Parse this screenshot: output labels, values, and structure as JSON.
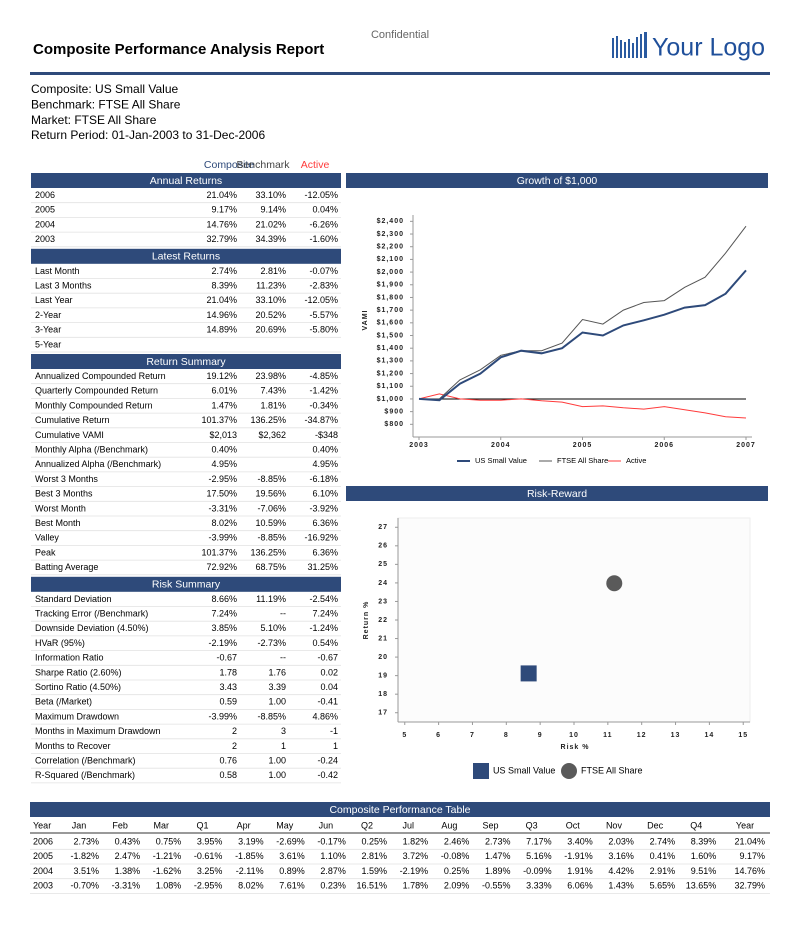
{
  "header": {
    "confidential": "Confidential",
    "title": "Composite Performance Analysis Report",
    "logo": "Your Logo"
  },
  "info": [
    "Composite: US Small Value",
    "Benchmark: FTSE All Share",
    "Market: FTSE All Share",
    "Return Period: 01-Jan-2003 to 31-Dec-2006"
  ],
  "legend": [
    {
      "name": "Composite",
      "color": "#2e4a7a"
    },
    {
      "name": "Benchmark",
      "color": "#444444"
    },
    {
      "name": "Active",
      "color": "#ff3b3b"
    }
  ],
  "sections": [
    {
      "title": "Annual Returns",
      "rows": [
        [
          "2006",
          "21.04%",
          "33.10%",
          "-12.05%"
        ],
        [
          "2005",
          "9.17%",
          "9.14%",
          "0.04%"
        ],
        [
          "2004",
          "14.76%",
          "21.02%",
          "-6.26%"
        ],
        [
          "2003",
          "32.79%",
          "34.39%",
          "-1.60%"
        ]
      ]
    },
    {
      "title": "Latest Returns",
      "rows": [
        [
          "Last Month",
          "2.74%",
          "2.81%",
          "-0.07%"
        ],
        [
          "Last 3 Months",
          "8.39%",
          "11.23%",
          "-2.83%"
        ],
        [
          "Last Year",
          "21.04%",
          "33.10%",
          "-12.05%"
        ],
        [
          "2-Year",
          "14.96%",
          "20.52%",
          "-5.57%"
        ],
        [
          "3-Year",
          "14.89%",
          "20.69%",
          "-5.80%"
        ],
        [
          "5-Year"
        ]
      ]
    },
    {
      "title": "Return Summary",
      "rows": [
        [
          "Annualized Compounded Return",
          "19.12%",
          "23.98%",
          "-4.85%"
        ],
        [
          "Quarterly Compounded Return",
          "6.01%",
          "7.43%",
          "-1.42%"
        ],
        [
          "Monthly Compounded Return",
          "1.47%",
          "1.81%",
          "-0.34%"
        ],
        [
          "Cumulative Return",
          "101.37%",
          "136.25%",
          "-34.87%"
        ],
        [
          "Cumulative VAMI",
          "$2,013",
          "$2,362",
          "-$348"
        ],
        [
          "Monthly Alpha (/Benchmark)",
          "0.40%",
          null,
          "0.40%"
        ],
        [
          "Annualized Alpha (/Benchmark)",
          "4.95%",
          null,
          "4.95%"
        ],
        [
          "Worst 3 Months",
          "-2.95%",
          "-8.85%",
          "-6.18%"
        ],
        [
          "Best 3 Months",
          "17.50%",
          "19.56%",
          "6.10%"
        ],
        [
          "Worst Month",
          "-3.31%",
          "-7.06%",
          "-3.92%"
        ],
        [
          "Best Month",
          "8.02%",
          "10.59%",
          "6.36%"
        ],
        [
          "Valley",
          "-3.99%",
          "-8.85%",
          "-16.92%"
        ],
        [
          "Peak",
          "101.37%",
          "136.25%",
          "6.36%"
        ],
        [
          "Batting Average",
          "72.92%",
          "68.75%",
          "31.25%"
        ]
      ]
    },
    {
      "title": "Risk Summary",
      "rows": [
        [
          "Standard Deviation",
          "8.66%",
          "11.19%",
          "-2.54%"
        ],
        [
          "Tracking Error (/Benchmark)",
          "7.24%",
          "--",
          "7.24%"
        ],
        [
          "Downside Deviation (4.50%)",
          "3.85%",
          "5.10%",
          "-1.24%"
        ],
        [
          "HVaR (95%)",
          "-2.19%",
          "-2.73%",
          "0.54%"
        ],
        [
          "Information Ratio",
          "-0.67",
          "--",
          "-0.67"
        ],
        [
          "Sharpe Ratio (2.60%)",
          "1.78",
          "1.76",
          "0.02"
        ],
        [
          "Sortino Ratio (4.50%)",
          "3.43",
          "3.39",
          "0.04"
        ],
        [
          "Beta (/Market)",
          "0.59",
          "1.00",
          "-0.41"
        ],
        [
          "Maximum Drawdown",
          "-3.99%",
          "-8.85%",
          "4.86%"
        ],
        [
          "Months in Maximum Drawdown",
          "2",
          "3",
          "-1"
        ],
        [
          "Months to Recover",
          "2",
          "1",
          "1"
        ],
        [
          "Correlation (/Benchmark)",
          "0.76",
          "1.00",
          "-0.24"
        ],
        [
          "R-Squared (/Benchmark)",
          "0.58",
          "1.00",
          "-0.42"
        ]
      ]
    }
  ],
  "chart_data": [
    {
      "type": "line",
      "title": "Growth of $1,000",
      "y_label": "VAMI",
      "x": [
        2003,
        2003.25,
        2003.5,
        2003.75,
        2004,
        2004.25,
        2004.5,
        2004.75,
        2005,
        2005.25,
        2005.5,
        2005.75,
        2006,
        2006.25,
        2006.5,
        2006.75,
        2007
      ],
      "xlim": [
        2003,
        2007
      ],
      "xticks": [
        2003,
        2004,
        2005,
        2006,
        2007
      ],
      "ylim": [
        700,
        2450
      ],
      "yticks": [
        {
          "value": 800,
          "label": "$800"
        },
        {
          "value": 900,
          "label": "$900"
        },
        {
          "value": 1000,
          "label": "$1,000"
        },
        {
          "value": 1100,
          "label": "$1,100"
        },
        {
          "value": 1200,
          "label": "$1,200"
        },
        {
          "value": 1300,
          "label": "$1,300"
        },
        {
          "value": 1400,
          "label": "$1,400"
        },
        {
          "value": 1500,
          "label": "$1,500"
        },
        {
          "value": 1600,
          "label": "$1,600"
        },
        {
          "value": 1700,
          "label": "$1,700"
        },
        {
          "value": 1800,
          "label": "$1,800"
        },
        {
          "value": 1900,
          "label": "$1,900"
        },
        {
          "value": 2000,
          "label": "$2,000"
        },
        {
          "value": 2100,
          "label": "$2,100"
        },
        {
          "value": 2200,
          "label": "$2,200"
        },
        {
          "value": 2300,
          "label": "$2,300"
        },
        {
          "value": 2400,
          "label": "$2,400"
        }
      ],
      "baseline": 1000,
      "series": [
        {
          "name": "US Small Value",
          "color": "#2e4a7a",
          "width": 2,
          "values": [
            1000,
            990,
            1120,
            1200,
            1328,
            1380,
            1360,
            1400,
            1524,
            1500,
            1580,
            1620,
            1664,
            1720,
            1740,
            1830,
            2013
          ]
        },
        {
          "name": "FTSE All Share",
          "color": "#555555",
          "width": 1,
          "values": [
            1000,
            1000,
            1150,
            1230,
            1344,
            1380,
            1380,
            1440,
            1626,
            1590,
            1700,
            1760,
            1775,
            1880,
            1960,
            2150,
            2362
          ]
        },
        {
          "name": "Active",
          "color": "#ff3b3b",
          "width": 1,
          "values": [
            1000,
            1040,
            1000,
            990,
            990,
            1000,
            985,
            975,
            940,
            945,
            930,
            920,
            940,
            915,
            890,
            860,
            850
          ]
        }
      ]
    },
    {
      "type": "scatter",
      "title": "Risk-Reward",
      "x_label": "Risk %",
      "y_label": "Return %",
      "xlim": [
        4.8,
        15.2
      ],
      "xticks": [
        5,
        6,
        7,
        8,
        9,
        10,
        11,
        12,
        13,
        14,
        15
      ],
      "ylim": [
        16.5,
        27.5
      ],
      "yticks": [
        17,
        18,
        19,
        20,
        21,
        22,
        23,
        24,
        25,
        26,
        27
      ],
      "series": [
        {
          "name": "US Small Value",
          "color": "#2e4a7a",
          "marker": "square",
          "x": [
            8.66
          ],
          "values": [
            19.12
          ]
        },
        {
          "name": "FTSE All Share",
          "color": "#5a5a5a",
          "marker": "circle",
          "x": [
            11.19
          ],
          "values": [
            23.98
          ]
        }
      ]
    }
  ],
  "performance_table": {
    "title": "Composite Performance Table",
    "header": [
      "Year",
      "Jan",
      "Feb",
      "Mar",
      "Q1",
      "Apr",
      "May",
      "Jun",
      "Q2",
      "Jul",
      "Aug",
      "Sep",
      "Q3",
      "Oct",
      "Nov",
      "Dec",
      "Q4",
      "Year"
    ],
    "rows": [
      [
        "2006",
        "2.73%",
        "0.43%",
        "0.75%",
        "3.95%",
        "3.19%",
        "-2.69%",
        "-0.17%",
        "0.25%",
        "1.82%",
        "2.46%",
        "2.73%",
        "7.17%",
        "3.40%",
        "2.03%",
        "2.74%",
        "8.39%",
        "21.04%"
      ],
      [
        "2005",
        "-1.82%",
        "2.47%",
        "-1.21%",
        "-0.61%",
        "-1.85%",
        "3.61%",
        "1.10%",
        "2.81%",
        "3.72%",
        "-0.08%",
        "1.47%",
        "5.16%",
        "-1.91%",
        "3.16%",
        "0.41%",
        "1.60%",
        "9.17%"
      ],
      [
        "2004",
        "3.51%",
        "1.38%",
        "-1.62%",
        "3.25%",
        "-2.11%",
        "0.89%",
        "2.87%",
        "1.59%",
        "-2.19%",
        "0.25%",
        "1.89%",
        "-0.09%",
        "1.91%",
        "4.42%",
        "2.91%",
        "9.51%",
        "14.76%"
      ],
      [
        "2003",
        "-0.70%",
        "-3.31%",
        "1.08%",
        "-2.95%",
        "8.02%",
        "7.61%",
        "0.23%",
        "16.51%",
        "1.78%",
        "2.09%",
        "-0.55%",
        "3.33%",
        "6.06%",
        "1.43%",
        "5.65%",
        "13.65%",
        "32.79%"
      ]
    ]
  }
}
